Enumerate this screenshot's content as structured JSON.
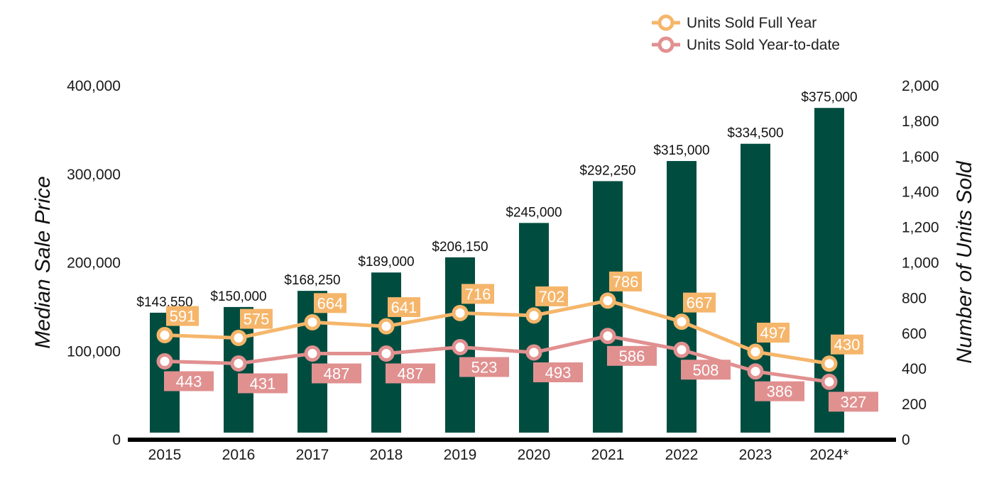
{
  "chart_data": {
    "type": "bar",
    "categories": [
      "2015",
      "2016",
      "2017",
      "2018",
      "2019",
      "2020",
      "2021",
      "2022",
      "2023",
      "2024*"
    ],
    "bars": {
      "values": [
        143550,
        150000,
        168250,
        189000,
        206150,
        245000,
        292250,
        315000,
        334500,
        375000
      ],
      "labels": [
        "$143,550",
        "$150,000",
        "$168,250",
        "$189,000",
        "$206,150",
        "$245,000",
        "$292,250",
        "$315,000",
        "$334,500",
        "$375,000"
      ],
      "color": "#004d40"
    },
    "series": [
      {
        "name": "Units Sold Full Year",
        "type": "line",
        "axis": "right",
        "values": [
          591,
          575,
          664,
          641,
          716,
          702,
          786,
          667,
          497,
          430
        ],
        "color": "#f5b66b"
      },
      {
        "name": "Units Sold Year-to-date",
        "type": "line",
        "axis": "right",
        "values": [
          443,
          431,
          487,
          487,
          523,
          493,
          586,
          508,
          386,
          327
        ],
        "color": "#e19090"
      }
    ],
    "ylabel": "Median Sale Price",
    "y2label": "Number of Units Sold",
    "ylim": [
      0,
      400000
    ],
    "y2lim": [
      0,
      2000
    ],
    "yticks": [
      "0",
      "100,000",
      "200,000",
      "300,000",
      "400,000"
    ],
    "y2ticks": [
      "0",
      "200",
      "400",
      "600",
      "800",
      "1,000",
      "1,200",
      "1,400",
      "1,600",
      "1,800",
      "2,000"
    ],
    "grid": false,
    "legend_position": "top-right"
  }
}
